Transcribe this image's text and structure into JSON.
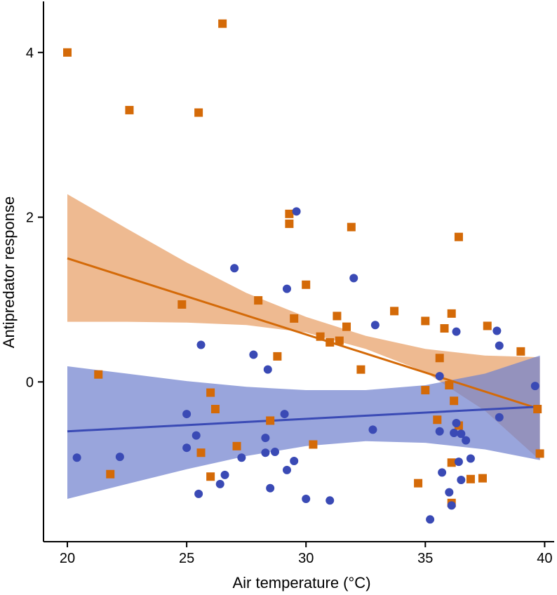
{
  "chart_data": {
    "type": "scatter",
    "title": "",
    "xlabel": "Air temperature (°C)",
    "ylabel": "Antipredator response",
    "xlim": [
      19.0,
      40.4
    ],
    "ylim": [
      -1.94,
      4.62
    ],
    "x_ticks": [
      20,
      25,
      30,
      35,
      40
    ],
    "y_ticks": [
      0,
      2,
      4
    ],
    "grid": false,
    "legend": "none",
    "series": [
      {
        "name": "orange",
        "color": "#d46a08",
        "band_color": "#e8a066",
        "marker": "square",
        "fit": {
          "x": [
            20.0,
            39.8
          ],
          "y": [
            1.5,
            -0.33
          ]
        },
        "band": {
          "x": [
            20.0,
            22.5,
            25.0,
            27.5,
            30.0,
            32.5,
            35.0,
            37.5,
            39.8
          ],
          "lower": [
            0.73,
            0.73,
            0.72,
            0.69,
            0.6,
            0.4,
            0.12,
            -0.35,
            -0.95
          ],
          "upper": [
            2.28,
            1.86,
            1.45,
            1.08,
            0.79,
            0.56,
            0.4,
            0.32,
            0.3
          ]
        },
        "points": [
          [
            20.0,
            4.0
          ],
          [
            22.6,
            3.3
          ],
          [
            25.5,
            3.27
          ],
          [
            26.5,
            4.35
          ],
          [
            29.3,
            2.04
          ],
          [
            29.3,
            1.92
          ],
          [
            31.9,
            1.88
          ],
          [
            36.4,
            1.76
          ],
          [
            30.0,
            1.18
          ],
          [
            24.8,
            0.94
          ],
          [
            28.0,
            0.99
          ],
          [
            29.5,
            0.77
          ],
          [
            31.3,
            0.8
          ],
          [
            33.7,
            0.86
          ],
          [
            35.0,
            0.74
          ],
          [
            36.1,
            0.83
          ],
          [
            35.8,
            0.65
          ],
          [
            31.7,
            0.67
          ],
          [
            30.6,
            0.55
          ],
          [
            31.0,
            0.48
          ],
          [
            31.4,
            0.5
          ],
          [
            37.6,
            0.68
          ],
          [
            39.0,
            0.37
          ],
          [
            28.8,
            0.31
          ],
          [
            32.3,
            0.15
          ],
          [
            35.6,
            0.29
          ],
          [
            21.3,
            0.09
          ],
          [
            36.0,
            -0.04
          ],
          [
            35.0,
            -0.1
          ],
          [
            26.0,
            -0.13
          ],
          [
            36.2,
            -0.23
          ],
          [
            26.2,
            -0.33
          ],
          [
            39.7,
            -0.33
          ],
          [
            35.5,
            -0.46
          ],
          [
            28.5,
            -0.47
          ],
          [
            36.4,
            -0.53
          ],
          [
            27.1,
            -0.78
          ],
          [
            30.3,
            -0.76
          ],
          [
            25.6,
            -0.86
          ],
          [
            39.8,
            -0.87
          ],
          [
            36.1,
            -0.98
          ],
          [
            21.8,
            -1.12
          ],
          [
            26.0,
            -1.15
          ],
          [
            36.9,
            -1.18
          ],
          [
            37.4,
            -1.17
          ],
          [
            34.7,
            -1.23
          ],
          [
            36.1,
            -1.47
          ]
        ]
      },
      {
        "name": "blue",
        "color": "#3a4ab5",
        "band_color": "#7182cf",
        "marker": "circle",
        "fit": {
          "x": [
            20.0,
            39.8
          ],
          "y": [
            -0.6,
            -0.3
          ]
        },
        "band": {
          "x": [
            20.0,
            22.5,
            25.0,
            27.5,
            30.0,
            32.5,
            35.0,
            37.5,
            39.8
          ],
          "lower": [
            -1.42,
            -1.24,
            -1.06,
            -0.9,
            -0.78,
            -0.72,
            -0.74,
            -0.82,
            -0.95
          ],
          "upper": [
            0.19,
            0.1,
            0.01,
            -0.06,
            -0.1,
            -0.1,
            -0.04,
            0.1,
            0.32
          ]
        },
        "points": [
          [
            29.6,
            2.07
          ],
          [
            27.0,
            1.38
          ],
          [
            32.0,
            1.26
          ],
          [
            29.2,
            1.13
          ],
          [
            32.9,
            0.69
          ],
          [
            36.3,
            0.61
          ],
          [
            38.0,
            0.62
          ],
          [
            25.6,
            0.45
          ],
          [
            38.1,
            0.44
          ],
          [
            27.8,
            0.33
          ],
          [
            28.4,
            0.15
          ],
          [
            35.6,
            0.07
          ],
          [
            39.6,
            -0.05
          ],
          [
            25.0,
            -0.39
          ],
          [
            29.1,
            -0.39
          ],
          [
            38.1,
            -0.43
          ],
          [
            25.4,
            -0.65
          ],
          [
            28.3,
            -0.68
          ],
          [
            32.8,
            -0.58
          ],
          [
            35.6,
            -0.6
          ],
          [
            36.2,
            -0.62
          ],
          [
            36.3,
            -0.5
          ],
          [
            36.5,
            -0.63
          ],
          [
            36.7,
            -0.71
          ],
          [
            25.0,
            -0.8
          ],
          [
            28.3,
            -0.86
          ],
          [
            28.7,
            -0.85
          ],
          [
            20.4,
            -0.92
          ],
          [
            22.2,
            -0.91
          ],
          [
            27.3,
            -0.92
          ],
          [
            29.5,
            -0.96
          ],
          [
            36.4,
            -0.97
          ],
          [
            36.9,
            -0.93
          ],
          [
            26.6,
            -1.13
          ],
          [
            29.2,
            -1.07
          ],
          [
            35.7,
            -1.1
          ],
          [
            26.4,
            -1.24
          ],
          [
            28.5,
            -1.29
          ],
          [
            36.0,
            -1.34
          ],
          [
            36.5,
            -1.19
          ],
          [
            25.5,
            -1.36
          ],
          [
            30.0,
            -1.42
          ],
          [
            31.0,
            -1.44
          ],
          [
            36.1,
            -1.5
          ],
          [
            35.2,
            -1.67
          ]
        ]
      }
    ]
  }
}
